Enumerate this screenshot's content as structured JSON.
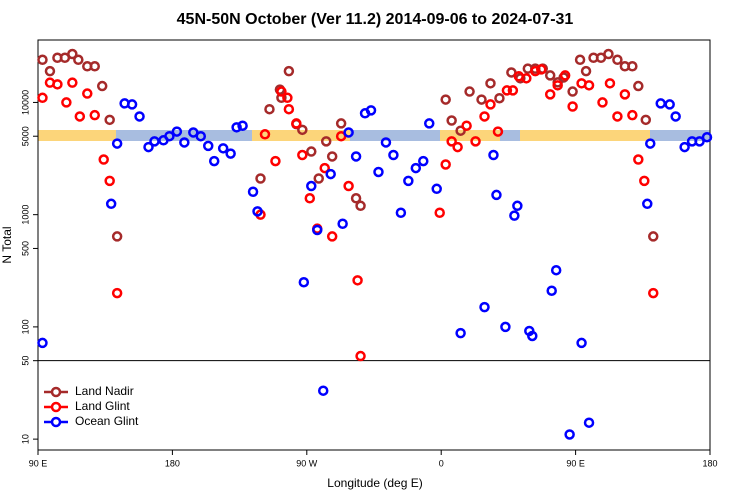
{
  "chart_data": {
    "type": "scatter",
    "title": "45N-50N October (Ver 11.2)   2014-09-06 to 2024-07-31",
    "xlabel": "Longitude (deg E)",
    "ylabel": "N Total",
    "xlim": [
      90,
      540
    ],
    "ylim": [
      8,
      36000
    ],
    "yscale": "log",
    "xticks": [
      {
        "value": 90,
        "label": "90 E"
      },
      180,
      {
        "value": 270,
        "label": "90 W"
      },
      {
        "value": 360,
        "label": "0"
      },
      {
        "value": 450,
        "label": "90 E"
      },
      {
        "value": 540,
        "label": "180"
      }
    ],
    "yticks": [
      10,
      50,
      100,
      500,
      1000,
      5000,
      10000
    ],
    "hline": 50,
    "legend": "lower left",
    "series": [
      {
        "name": "Land Nadir",
        "color": "#a52a2a",
        "x": [
          93,
          98,
          103,
          108,
          113,
          117,
          123,
          128,
          133,
          138,
          143,
          239,
          245,
          252,
          253,
          258,
          263,
          267,
          273,
          278,
          283,
          287,
          293,
          303,
          306,
          363,
          367,
          373,
          379,
          387,
          393,
          399,
          407,
          413,
          418,
          423,
          428,
          433,
          438,
          442,
          448,
          453,
          457,
          462,
          467,
          472,
          478,
          483,
          488,
          492,
          497,
          502
        ],
        "values": [
          24000,
          19000,
          25000,
          25000,
          27000,
          24000,
          21000,
          21000,
          14000,
          7000,
          640,
          2100,
          8700,
          13000,
          11000,
          19000,
          6400,
          5700,
          3650,
          2100,
          4500,
          3300,
          6500,
          1400,
          1200,
          10600,
          6900,
          5600,
          12500,
          10600,
          14800,
          10900,
          18500,
          16400,
          20000,
          20000,
          20000,
          17400,
          15100,
          16700,
          12500,
          24000,
          19000,
          25000,
          25000,
          27000,
          24000,
          21000,
          21000,
          14000,
          7000,
          640
        ]
      },
      {
        "name": "Land Glint",
        "color": "#ff0000",
        "x": [
          93,
          98,
          103,
          109,
          113,
          118,
          123,
          128,
          134,
          138,
          143,
          239,
          242,
          249,
          253,
          257,
          258,
          263,
          267,
          272,
          277,
          282,
          287,
          293,
          298,
          304,
          306,
          359,
          363,
          367,
          371,
          377,
          383,
          389,
          393,
          398,
          404,
          408,
          412,
          417,
          423,
          427,
          433,
          438,
          443,
          448,
          454,
          459,
          468,
          473,
          478,
          483,
          488,
          492,
          496,
          502
        ],
        "values": [
          11000,
          15000,
          14500,
          10000,
          15000,
          7500,
          12000,
          7700,
          3100,
          2000,
          200,
          1000,
          5200,
          3000,
          12500,
          11000,
          8700,
          6500,
          3400,
          1400,
          750,
          2600,
          640,
          5000,
          1800,
          260,
          55,
          1040,
          2800,
          4500,
          4000,
          6200,
          4500,
          7500,
          9600,
          5500,
          12800,
          12800,
          17100,
          16400,
          19000,
          19700,
          11800,
          14200,
          17400,
          9200,
          14800,
          14200,
          10000,
          14800,
          7500,
          11800,
          7700,
          3100,
          2000,
          200
        ]
      },
      {
        "name": "Ocean Glint",
        "color": "#0000ff",
        "x": [
          93,
          139,
          143,
          148,
          153,
          158,
          164,
          168,
          174,
          178,
          183,
          188,
          194,
          199,
          204,
          208,
          214,
          219,
          223,
          227,
          234,
          237,
          268,
          273,
          277,
          281,
          286,
          294,
          298,
          303,
          309,
          313,
          318,
          323,
          328,
          333,
          338,
          343,
          348,
          352,
          357,
          373,
          389,
          395,
          397,
          403,
          409,
          411,
          419,
          421,
          434,
          437,
          446,
          454,
          459,
          498,
          500,
          507,
          513,
          517,
          523,
          528,
          533,
          538
        ],
        "values": [
          72,
          1250,
          4300,
          9800,
          9600,
          7500,
          4000,
          4500,
          4600,
          5000,
          5500,
          4400,
          5400,
          5000,
          4100,
          3000,
          3900,
          3500,
          6000,
          6200,
          1600,
          1070,
          250,
          1800,
          730,
          27,
          2300,
          830,
          5400,
          3300,
          8000,
          8500,
          2400,
          4400,
          3400,
          1040,
          2000,
          2600,
          3000,
          6500,
          1700,
          88,
          150,
          3400,
          1500,
          100,
          980,
          1200,
          92,
          83,
          210,
          320,
          11,
          72,
          14,
          1250,
          4300,
          9800,
          9600,
          7500,
          4000,
          4500,
          4500,
          4900
        ]
      }
    ]
  }
}
